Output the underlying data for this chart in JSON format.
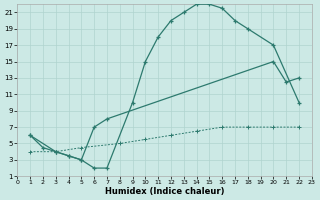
{
  "xlabel": "Humidex (Indice chaleur)",
  "bg_color": "#cce9e5",
  "line_color": "#2d7a6e",
  "grid_color": "#b0d4cf",
  "xlim": [
    0,
    23
  ],
  "ylim": [
    1,
    22
  ],
  "xticks": [
    0,
    1,
    2,
    3,
    4,
    5,
    6,
    7,
    8,
    9,
    10,
    11,
    12,
    13,
    14,
    15,
    16,
    17,
    18,
    19,
    20,
    21,
    22,
    23
  ],
  "yticks": [
    1,
    3,
    5,
    7,
    9,
    11,
    13,
    15,
    17,
    19,
    21
  ],
  "line1_x": [
    1,
    2,
    3,
    4,
    5,
    6,
    7,
    9,
    10,
    11,
    12,
    13,
    14,
    15,
    16,
    17,
    18,
    20,
    22
  ],
  "line1_y": [
    6,
    4.5,
    4,
    3.5,
    3,
    2,
    2,
    10,
    15,
    18,
    20,
    21,
    22,
    22,
    21.5,
    20,
    19,
    17,
    10
  ],
  "line2_x": [
    1,
    3,
    4,
    5,
    6,
    7,
    20,
    21,
    22
  ],
  "line2_y": [
    6,
    4,
    3.5,
    3,
    7,
    8,
    15,
    12.5,
    13
  ],
  "line3_x": [
    1,
    3,
    5,
    8,
    10,
    12,
    14,
    16,
    18,
    20,
    22
  ],
  "line3_y": [
    4,
    4,
    4.5,
    5,
    5.5,
    6,
    6.5,
    7,
    7,
    7,
    7
  ]
}
